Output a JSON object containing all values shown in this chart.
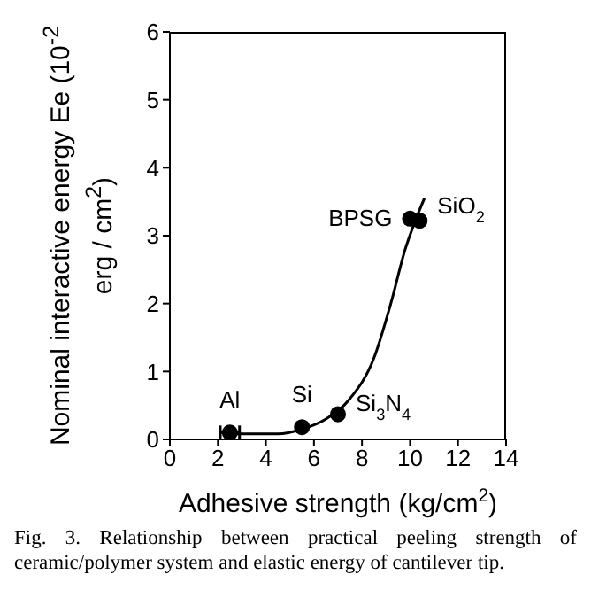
{
  "chart_data": {
    "type": "scatter",
    "xlabel": "Adhesive strength (kg/cm$^{2}$)",
    "ylabel": "Nominal interactive energy Ee (10$^{-2}$ erg / cm$^{2}$)",
    "xlim": [
      0,
      14
    ],
    "xticks": [
      0,
      2,
      4,
      6,
      8,
      10,
      12,
      14
    ],
    "ylim": [
      0,
      6
    ],
    "yticks": [
      0,
      1,
      2,
      3,
      4,
      5,
      6
    ],
    "grid": false,
    "legend": false,
    "marker": "circle",
    "series": [
      {
        "color": "#000000",
        "x": [
          2.5,
          5.5,
          7.0,
          10.0,
          10.4
        ],
        "values": [
          0.1,
          0.18,
          0.37,
          3.25,
          3.22
        ],
        "xerrors": [
          [
            2.1,
            2.9
          ],
          null,
          null,
          null,
          null
        ]
      },
      {
        "type": "line",
        "color": "#000000",
        "marker": "none",
        "x": [
          2.2,
          3.5,
          4.5,
          5.5,
          6.5,
          7.5,
          8.5,
          9.2,
          9.8,
          10.2,
          10.6
        ],
        "values": [
          0.08,
          0.08,
          0.08,
          0.15,
          0.3,
          0.6,
          1.2,
          2.0,
          2.8,
          3.2,
          3.55
        ]
      }
    ],
    "annotations": [
      {
        "text": "Al",
        "x": 2.5,
        "y": 0.1
      },
      {
        "text": "Si",
        "x": 5.5,
        "y": 0.18
      },
      {
        "text": "Si$_{3}$N$_{4}$",
        "x": 7.0,
        "y": 0.37
      },
      {
        "text": "BPSG",
        "x": 10.0,
        "y": 3.25
      },
      {
        "text": "SiO$_{2}$",
        "x": 10.4,
        "y": 3.22
      },
      "Fig. 3.    Relationship between practical peeling strength of ceramic/polymer system and elastic energy of cantilever tip."
    ]
  }
}
